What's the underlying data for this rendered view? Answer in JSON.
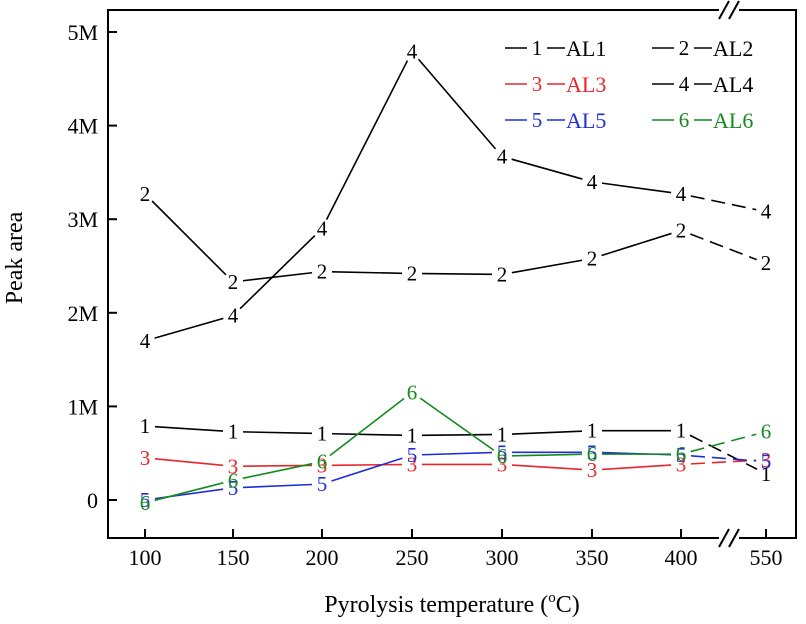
{
  "chart_data": {
    "type": "line",
    "xlabel": "Pyrolysis temperature (",
    "xlabel_sup": "o",
    "xlabel_end": "C)",
    "ylabel": "Peak area",
    "x": [
      100,
      150,
      200,
      250,
      300,
      350,
      400,
      550
    ],
    "x_tick_labels": [
      "100",
      "150",
      "200",
      "250",
      "300",
      "350",
      "400",
      "550"
    ],
    "x_axis_break": "between 400 and 550",
    "y_ticks": [
      0,
      1000000,
      2000000,
      3000000,
      4000000,
      5000000
    ],
    "y_tick_labels": [
      "0",
      "1M",
      "2M",
      "3M",
      "4M",
      "5M"
    ],
    "ylim": [
      -250000,
      5250000
    ],
    "grid": false,
    "legend_position": "top-right",
    "series": [
      {
        "name": "AL1",
        "marker": "1",
        "color": "#000000",
        "values": [
          790000,
          730000,
          710000,
          690000,
          700000,
          740000,
          740000,
          280000
        ]
      },
      {
        "name": "AL2",
        "marker": "2",
        "color": "#000000",
        "values": [
          3270000,
          2330000,
          2440000,
          2420000,
          2410000,
          2580000,
          2880000,
          2530000
        ]
      },
      {
        "name": "AL3",
        "marker": "3",
        "color": "#e8262a",
        "values": [
          450000,
          360000,
          370000,
          380000,
          380000,
          320000,
          380000,
          430000
        ]
      },
      {
        "name": "AL4",
        "marker": "4",
        "color": "#000000",
        "values": [
          1700000,
          1970000,
          2900000,
          4790000,
          3670000,
          3400000,
          3270000,
          3080000
        ]
      },
      {
        "name": "AL5",
        "marker": "5",
        "color": "#1f2ed6",
        "values": [
          0,
          130000,
          170000,
          480000,
          510000,
          510000,
          480000,
          410000
        ]
      },
      {
        "name": "AL6",
        "marker": "6",
        "color": "#138a1e",
        "values": [
          -30000,
          210000,
          410000,
          1150000,
          470000,
          490000,
          490000,
          730000
        ]
      }
    ]
  }
}
